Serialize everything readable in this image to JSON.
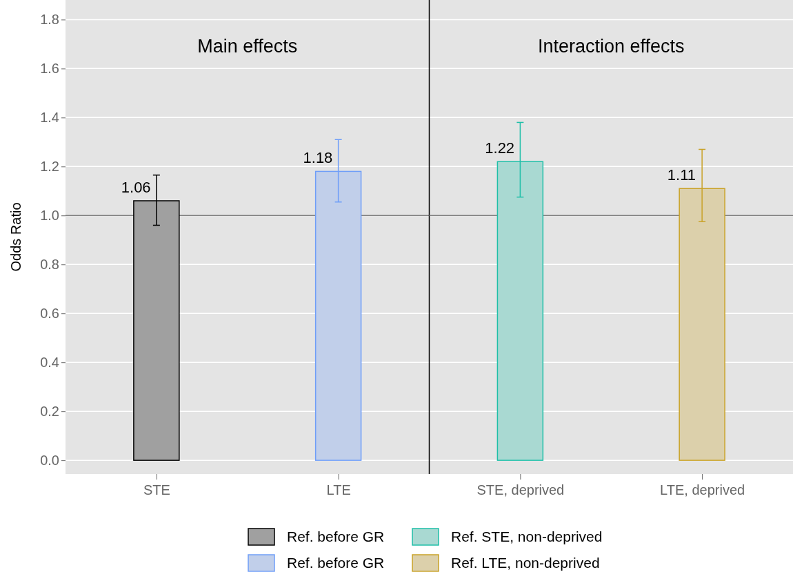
{
  "chart_data": [
    {
      "type": "bar",
      "title": "Main effects",
      "ylabel": "Odds Ratio",
      "categories": [
        "STE",
        "LTE"
      ],
      "series": [
        {
          "name": "Ref. before GR",
          "color": "#000000",
          "values": [
            1.06,
            null
          ],
          "errors": [
            [
              0.96,
              1.165
            ],
            null
          ]
        },
        {
          "name": "Ref. before GR",
          "color": "#6f9ef8",
          "values": [
            null,
            1.18
          ],
          "errors": [
            null,
            [
              1.055,
              1.31
            ]
          ]
        }
      ],
      "ylim": [
        -0.056,
        1.88
      ],
      "yticks": [
        {
          "value": 0,
          "label": "0.0"
        },
        0.2,
        0.4,
        0.6,
        0.8,
        {
          "value": 1,
          "label": "1.0"
        },
        1.2,
        1.4,
        1.6,
        1.8
      ],
      "ref_lines": [
        {
          "axis": "y",
          "value": 1,
          "color": "#808080"
        }
      ],
      "data_labels": true,
      "grid": "y",
      "legend": "bottom"
    },
    {
      "type": "bar",
      "title": "Interaction effects",
      "categories": [
        "STE, deprived",
        "LTE, deprived"
      ],
      "series": [
        {
          "name": "Ref. STE, non-deprived",
          "color": "#1fbfa8",
          "values": [
            1.22,
            null
          ],
          "errors": [
            [
              1.075,
              1.38
            ],
            null
          ]
        },
        {
          "name": "Ref. LTE, non-deprived",
          "color": "#c9a227",
          "values": [
            null,
            1.11
          ],
          "errors": [
            null,
            [
              0.975,
              1.27
            ]
          ]
        }
      ],
      "ylim": [
        -0.056,
        1.88
      ],
      "yticks": [
        0,
        0.2,
        0.4,
        0.6,
        0.8,
        1,
        1.2,
        1.4,
        1.6,
        1.8
      ],
      "ref_lines": [
        {
          "axis": "y",
          "value": 1,
          "color": "#808080"
        }
      ],
      "data_labels": true,
      "grid": "y",
      "legend": "bottom",
      "tick_labels": "x"
    }
  ]
}
